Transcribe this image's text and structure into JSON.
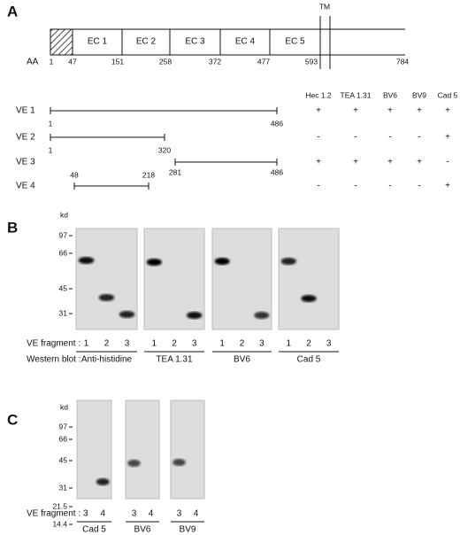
{
  "panel_a": {
    "label": "A",
    "tm": "TM",
    "aa_label": "AA",
    "domains": [
      "EC 1",
      "EC 2",
      "EC 3",
      "EC 4",
      "EC 5"
    ],
    "positions": [
      "1",
      "47",
      "151",
      "258",
      "372",
      "477",
      "593",
      "784"
    ],
    "fragments": [
      {
        "name": "VE 1",
        "start": "1",
        "end": "486"
      },
      {
        "name": "VE 2",
        "start": "1",
        "end": "320"
      },
      {
        "name": "VE 3",
        "start": "281",
        "end": "486"
      },
      {
        "name": "VE 4",
        "start": "48",
        "end": "218"
      }
    ],
    "antibodies": [
      "Hec 1.2",
      "TEA 1.31",
      "BV6",
      "BV9",
      "Cad 5"
    ],
    "reactivity": [
      [
        "+",
        "+",
        "+",
        "+",
        "+"
      ],
      [
        "-",
        "-",
        "-",
        "-",
        "+"
      ],
      [
        "+",
        "+",
        "+",
        "+",
        "-"
      ],
      [
        "-",
        "-",
        "-",
        "-",
        "+"
      ]
    ]
  },
  "panel_b": {
    "label": "B",
    "unit": "kd",
    "markers": [
      "97",
      "66",
      "45",
      "31"
    ],
    "fragment_label": "VE fragment :",
    "blot_label": "Western blot :",
    "blots": [
      {
        "antibody": "Anti-histidine",
        "lanes": [
          "1",
          "2",
          "3"
        ]
      },
      {
        "antibody": "TEA 1.31",
        "lanes": [
          "1",
          "2",
          "3"
        ]
      },
      {
        "antibody": "BV6",
        "lanes": [
          "1",
          "2",
          "3"
        ]
      },
      {
        "antibody": "Cad 5",
        "lanes": [
          "1",
          "2",
          "3"
        ]
      }
    ]
  },
  "panel_c": {
    "label": "C",
    "unit": "kd",
    "markers": [
      "97",
      "66",
      "45",
      "31",
      "21.5",
      "14.4"
    ],
    "fragment_label": "VE fragment :",
    "blots": [
      {
        "antibody": "Cad 5",
        "lanes": [
          "3",
          "4"
        ]
      },
      {
        "antibody": "BV6",
        "lanes": [
          "3",
          "4"
        ]
      },
      {
        "antibody": "BV9",
        "lanes": [
          "3",
          "4"
        ]
      }
    ]
  }
}
